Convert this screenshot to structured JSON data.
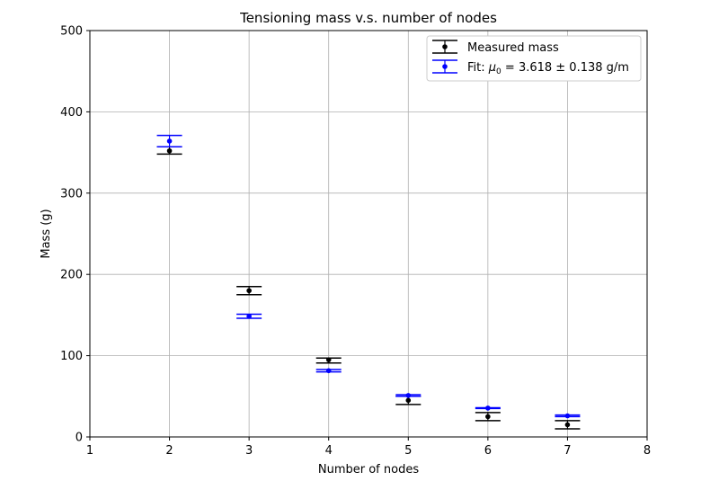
{
  "chart_data": {
    "type": "scatter",
    "title": "Tensioning mass v.s. number of nodes",
    "xlabel": "Number of nodes",
    "ylabel": "Mass (g)",
    "xlim": [
      1,
      8
    ],
    "ylim": [
      0,
      500
    ],
    "xticks": [
      "1",
      "2",
      "3",
      "4",
      "5",
      "6",
      "7",
      "8"
    ],
    "yticks": [
      "0",
      "100",
      "200",
      "300",
      "400",
      "500"
    ],
    "grid": true,
    "legend_position": "top-right",
    "series": [
      {
        "name": "Measured mass",
        "color": "#000000",
        "marker": "point",
        "points": [
          {
            "x": 2,
            "y": 352,
            "err_low": 348,
            "err_high": 357
          },
          {
            "x": 3,
            "y": 180,
            "err_low": 175,
            "err_high": 185
          },
          {
            "x": 4,
            "y": 95,
            "err_low": 91,
            "err_high": 97
          },
          {
            "x": 5,
            "y": 45,
            "err_low": 40,
            "err_high": 50
          },
          {
            "x": 6,
            "y": 25,
            "err_low": 20,
            "err_high": 30
          },
          {
            "x": 7,
            "y": 15,
            "err_low": 10,
            "err_high": 20
          }
        ]
      },
      {
        "name": "Fit: μ0 = 3.618 ± 0.138 g/m",
        "legend_label": {
          "prefix": "Fit: ",
          "symbol": "μ",
          "subscript": "0",
          "suffix": " = 3.618 ± 0.138 g/m"
        },
        "color": "#0000ff",
        "marker": "point",
        "points": [
          {
            "x": 2,
            "y": 364,
            "err_low": 357,
            "err_high": 371
          },
          {
            "x": 3,
            "y": 148.5,
            "err_low": 146,
            "err_high": 151
          },
          {
            "x": 4,
            "y": 81.5,
            "err_low": 80,
            "err_high": 83
          },
          {
            "x": 5,
            "y": 51,
            "err_low": 50,
            "err_high": 52
          },
          {
            "x": 6,
            "y": 35.5,
            "err_low": 35,
            "err_high": 36
          },
          {
            "x": 7,
            "y": 26,
            "err_low": 25,
            "err_high": 27
          }
        ]
      }
    ]
  }
}
